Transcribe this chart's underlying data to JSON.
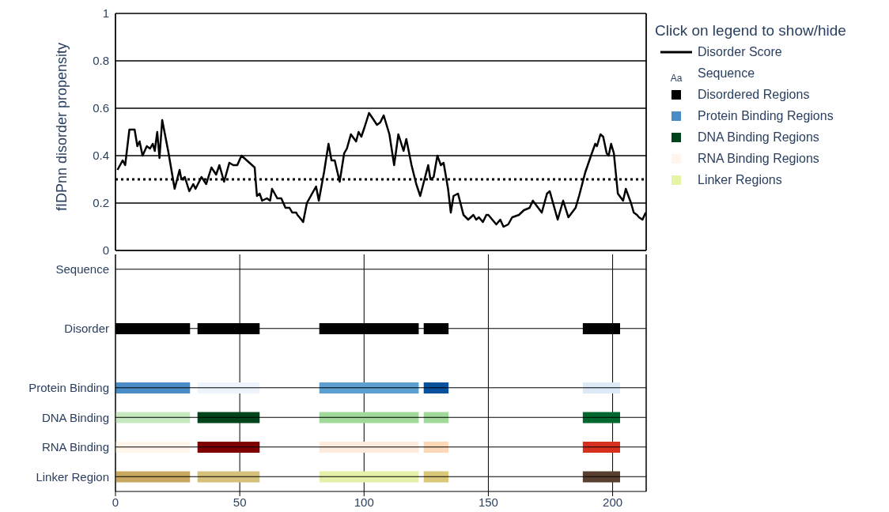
{
  "chart_data": [
    {
      "type": "line",
      "ylabel": "fIDPnn disorder propensity",
      "legend_title": "Click on legend to show/hide",
      "legend": "right",
      "grid": true,
      "tick_labels": "y",
      "marker": "none",
      "line_style": "solid",
      "xlim": [
        0,
        213.5
      ],
      "xticks": [
        0,
        50,
        100,
        150,
        200
      ],
      "ylim": [
        0,
        1
      ],
      "yticks": [
        0,
        0.2,
        0.4,
        0.6,
        0.8,
        1
      ],
      "ref_lines": [
        {
          "axis": "y",
          "value": 0.3,
          "color": "#000000",
          "line_style": "dotted"
        }
      ],
      "series": [
        {
          "name": "Disorder Score",
          "color": "#000000",
          "x": [
            0.8,
            2.9,
            3.9,
            5.6,
            7.7,
            8.8,
            9.7,
            10.9,
            12.6,
            13.9,
            15,
            15.8,
            16.8,
            17.7,
            18.8,
            21.2,
            23.8,
            25.8,
            26.5,
            27.9,
            29.7,
            31.3,
            32.2,
            34.6,
            36.5,
            38.6,
            40.5,
            41.8,
            43.7,
            45.8,
            47.4,
            49,
            50.7,
            53.9,
            56,
            56.9,
            58,
            59,
            60.9,
            62.2,
            63,
            65.1,
            66.7,
            68.4,
            70,
            71.1,
            72.7,
            73.2,
            74.8,
            75.5,
            77,
            79.1,
            80.7,
            81.8,
            83.9,
            85.7,
            86.9,
            88.2,
            90.2,
            92,
            93.1,
            94.7,
            96.8,
            97.8,
            98.9,
            100.2,
            102,
            103.3,
            105.2,
            106.5,
            107.9,
            110.2,
            112.1,
            113.8,
            115.9,
            117,
            119.1,
            121,
            122.6,
            125.8,
            126.7,
            128,
            129.5,
            130.9,
            132,
            133.8,
            134.9,
            136,
            137.8,
            140,
            141.9,
            144,
            145.1,
            146.2,
            147.8,
            149.2,
            150,
            153.2,
            154.8,
            156.1,
            158,
            159.6,
            162.3,
            164.3,
            166.6,
            167.9,
            171.5,
            173.6,
            174.7,
            177.9,
            180.1,
            182.2,
            185.1,
            186.5,
            189,
            191.3,
            193,
            193.7,
            195.1,
            196.2,
            197.6,
            198.4,
            199.4,
            200.5,
            202.1,
            204.2,
            205.3,
            207.4,
            208.5,
            209.8,
            210.6,
            212,
            213.3
          ],
          "values": [
            0.34,
            0.38,
            0.36,
            0.51,
            0.51,
            0.44,
            0.46,
            0.4,
            0.44,
            0.43,
            0.45,
            0.42,
            0.5,
            0.39,
            0.55,
            0.42,
            0.26,
            0.34,
            0.3,
            0.31,
            0.25,
            0.28,
            0.26,
            0.31,
            0.28,
            0.35,
            0.32,
            0.36,
            0.29,
            0.37,
            0.36,
            0.36,
            0.4,
            0.37,
            0.35,
            0.23,
            0.24,
            0.21,
            0.22,
            0.21,
            0.26,
            0.22,
            0.22,
            0.18,
            0.18,
            0.16,
            0.16,
            0.15,
            0.13,
            0.12,
            0.2,
            0.24,
            0.27,
            0.21,
            0.33,
            0.45,
            0.38,
            0.38,
            0.29,
            0.41,
            0.43,
            0.49,
            0.46,
            0.5,
            0.48,
            0.52,
            0.58,
            0.56,
            0.53,
            0.54,
            0.57,
            0.49,
            0.36,
            0.49,
            0.42,
            0.47,
            0.36,
            0.28,
            0.23,
            0.36,
            0.3,
            0.31,
            0.4,
            0.36,
            0.37,
            0.26,
            0.16,
            0.23,
            0.24,
            0.15,
            0.13,
            0.15,
            0.13,
            0.14,
            0.12,
            0.15,
            0.15,
            0.11,
            0.13,
            0.1,
            0.11,
            0.14,
            0.15,
            0.17,
            0.18,
            0.21,
            0.16,
            0.24,
            0.25,
            0.13,
            0.21,
            0.14,
            0.18,
            0.23,
            0.33,
            0.4,
            0.45,
            0.44,
            0.49,
            0.48,
            0.41,
            0.4,
            0.45,
            0.41,
            0.24,
            0.21,
            0.26,
            0.2,
            0.16,
            0.15,
            0.14,
            0.13,
            0.16
          ]
        }
      ]
    },
    {
      "type": "bar",
      "orientation": "horizontal",
      "grid": true,
      "legend": "right",
      "xlim": [
        0,
        213.5
      ],
      "xticks": [
        0,
        50,
        100,
        150,
        200
      ],
      "categories": [
        "Sequence",
        null,
        "Disorder",
        null,
        "Protein Binding",
        "DNA Binding",
        "RNA Binding",
        "Linker Region"
      ],
      "annotations": [
        "Aa"
      ],
      "series": [
        {
          "name": "Sequence",
          "type": "other",
          "color": "#2a3f5f",
          "values": [
            null,
            null,
            null,
            null,
            null,
            null,
            null,
            null
          ]
        },
        {
          "name": "Disordered Regions",
          "color": "#000000",
          "base": [
            null,
            null,
            0,
            null,
            null,
            null,
            null,
            null
          ],
          "values": [
            null,
            null,
            30,
            null,
            null,
            null,
            null,
            null
          ],
          "colors": [
            null,
            null,
            "#000000",
            null,
            null,
            null,
            null,
            null
          ]
        },
        {
          "name": "Protein Binding Regions",
          "color": "#4a8cc6",
          "base": [
            null,
            null,
            null,
            null,
            0,
            null,
            null,
            null
          ],
          "values": [
            null,
            null,
            null,
            null,
            30,
            null,
            null,
            null
          ],
          "colors": [
            null,
            null,
            null,
            null,
            "#4a8cc6",
            null,
            null,
            null
          ]
        },
        {
          "name": "DNA Binding Regions",
          "color": "#00441b",
          "base": [
            null,
            null,
            null,
            null,
            null,
            0,
            null,
            null
          ],
          "values": [
            null,
            null,
            null,
            null,
            null,
            30,
            null,
            null
          ],
          "colors": [
            null,
            null,
            null,
            null,
            null,
            "#c7e9c0",
            null,
            null
          ]
        },
        {
          "name": "RNA Binding Regions",
          "color": "#fff5eb",
          "base": [
            null,
            null,
            null,
            null,
            null,
            null,
            0,
            null
          ],
          "values": [
            null,
            null,
            null,
            null,
            null,
            null,
            30,
            null
          ],
          "colors": [
            null,
            null,
            null,
            null,
            null,
            null,
            "#fff5eb",
            null
          ]
        },
        {
          "name": "Linker Regions",
          "color": "#e5f5a8",
          "base": [
            null,
            null,
            null,
            null,
            null,
            null,
            null,
            0
          ],
          "values": [
            null,
            null,
            null,
            null,
            null,
            null,
            null,
            30
          ],
          "colors": [
            null,
            null,
            null,
            null,
            null,
            null,
            null,
            "#c8a860"
          ]
        },
        {
          "base": [
            null,
            null,
            33,
            null,
            33,
            33,
            33,
            33
          ],
          "values": [
            null,
            null,
            25,
            null,
            25,
            25,
            25,
            25
          ],
          "colors": [
            null,
            null,
            "#000000",
            null,
            "#eef4fb",
            "#00441b",
            "#7f0000",
            "#d4c07a"
          ]
        },
        {
          "base": [
            null,
            null,
            82,
            null,
            82,
            82,
            82,
            82
          ],
          "values": [
            null,
            null,
            40,
            null,
            40,
            40,
            40,
            40
          ],
          "colors": [
            null,
            null,
            "#000000",
            null,
            "#5d9fd0",
            "#a1d99b",
            "#fdebdd",
            "#e5f0a8"
          ]
        },
        {
          "base": [
            null,
            null,
            124,
            null,
            124,
            124,
            124,
            124
          ],
          "values": [
            null,
            null,
            10,
            null,
            10,
            10,
            10,
            10
          ],
          "colors": [
            null,
            null,
            "#000000",
            null,
            "#08519c",
            "#a1d99b",
            "#fdd9b8",
            "#d8c878"
          ]
        },
        {
          "base": [
            null,
            null,
            188,
            null,
            188,
            188,
            188,
            188
          ],
          "values": [
            null,
            null,
            15,
            null,
            15,
            15,
            15,
            15
          ],
          "colors": [
            null,
            null,
            "#000000",
            null,
            "#dce9f6",
            "#00682f",
            "#d7301f",
            "#5a4030"
          ]
        }
      ]
    }
  ]
}
